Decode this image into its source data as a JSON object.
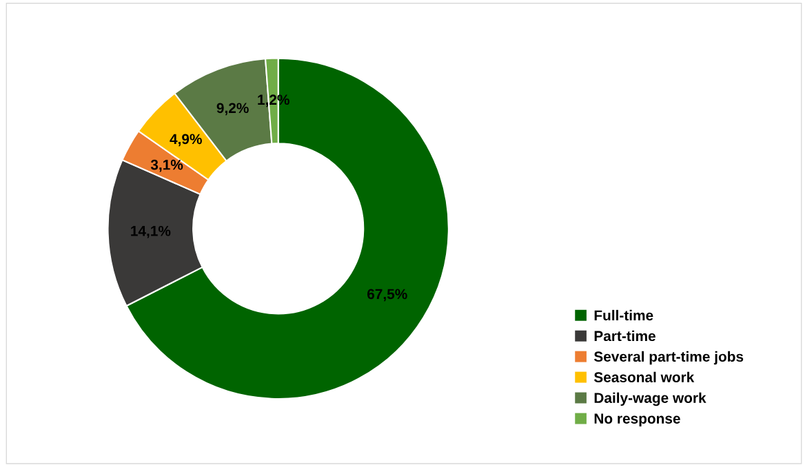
{
  "chart_data": {
    "type": "donut",
    "categories": [
      "Full-time",
      "Part-time",
      "Several part-time jobs",
      "Seasonal work",
      "Daily-wage work",
      "No response"
    ],
    "values": [
      67.5,
      14.1,
      3.1,
      4.9,
      9.2,
      1.2
    ],
    "colors": [
      "#006400",
      "#3a3938",
      "#ed7d31",
      "#ffc000",
      "#5b7a45",
      "#70ad47"
    ],
    "value_labels": [
      "67,5%",
      "14,1%",
      "3,1%",
      "4,9%",
      "9,2%",
      "1,2%"
    ],
    "legend": "right"
  }
}
